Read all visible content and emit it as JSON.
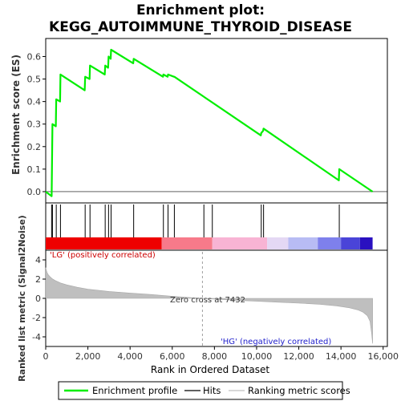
{
  "colors": {
    "enrichment_line": "#00ee00",
    "hit_line": "#000000",
    "ranked_fill": "#bfbfbf",
    "positive_label": "#cc0000",
    "negative_label": "#2222cc",
    "zero_cross_line": "#a0a0a0",
    "heatbar": [
      "#ee0000",
      "#f77a8a",
      "#f8b4d4",
      "#e4d8f4",
      "#b8bcf4",
      "#7e80ec",
      "#4a44d8",
      "#2a10c0"
    ]
  },
  "chart_data": [
    {
      "type": "line",
      "title": "Enrichment plot: KEGG_AUTOIMMUNE_THYROID_DISEASE",
      "title_lines": [
        "Enrichment plot:",
        "KEGG_AUTOIMMUNE_THYROID_DISEASE"
      ],
      "xlabel": "",
      "ylabel": "Enrichment score (ES)",
      "xlim": [
        0,
        16200
      ],
      "ylim": [
        -0.05,
        0.68
      ],
      "yticks": [
        0.0,
        0.1,
        0.2,
        0.3,
        0.4,
        0.5,
        0.6
      ],
      "ytick_labels": [
        "0.0",
        "0.1",
        "0.2",
        "0.3",
        "0.4",
        "0.5",
        "0.6"
      ],
      "grid": false,
      "series": [
        {
          "name": "Enrichment profile",
          "x": [
            0,
            280,
            300,
            320,
            480,
            500,
            680,
            700,
            1850,
            1870,
            2080,
            2100,
            2800,
            2820,
            2960,
            2980,
            3080,
            3100,
            4150,
            4170,
            5560,
            5580,
            5780,
            5800,
            6080,
            6100,
            10200,
            10220,
            10310,
            10330,
            13900,
            13920,
            15500
          ],
          "y": [
            0.0,
            -0.02,
            0.14,
            0.3,
            0.29,
            0.41,
            0.4,
            0.52,
            0.45,
            0.51,
            0.5,
            0.56,
            0.52,
            0.56,
            0.55,
            0.6,
            0.59,
            0.63,
            0.57,
            0.59,
            0.51,
            0.52,
            0.51,
            0.52,
            0.51,
            0.51,
            0.25,
            0.26,
            0.27,
            0.28,
            0.05,
            0.1,
            0.0
          ]
        }
      ]
    },
    {
      "type": "hits",
      "ylabel": "",
      "xlim": [
        0,
        16200
      ],
      "hit_positions": [
        280,
        320,
        500,
        700,
        1870,
        2100,
        2820,
        2980,
        3100,
        4170,
        5580,
        5800,
        6100,
        7500,
        7900,
        10220,
        10330,
        13920
      ],
      "heatbar_segments": [
        {
          "from": 0,
          "to": 5500
        },
        {
          "from": 5500,
          "to": 7900
        },
        {
          "from": 7900,
          "to": 10500
        },
        {
          "from": 10500,
          "to": 11500
        },
        {
          "from": 11500,
          "to": 12900
        },
        {
          "from": 12900,
          "to": 14000
        },
        {
          "from": 14000,
          "to": 14900
        },
        {
          "from": 14900,
          "to": 15500
        }
      ]
    },
    {
      "type": "area",
      "title": "",
      "xlabel": "Rank in Ordered Dataset",
      "ylabel": "Ranked list metric (Signal2Noise)",
      "xlim": [
        0,
        16200
      ],
      "ylim": [
        -5,
        5
      ],
      "xticks": [
        0,
        2000,
        4000,
        6000,
        8000,
        10000,
        12000,
        14000,
        16000
      ],
      "xtick_labels": [
        "0",
        "2,000",
        "4,000",
        "6,000",
        "8,000",
        "10,000",
        "12,000",
        "14,000",
        "16,000"
      ],
      "yticks": [
        4,
        2,
        0,
        -2,
        -4
      ],
      "ytick_labels": [
        "4",
        "2",
        "0",
        "-2",
        "-4"
      ],
      "series": [
        {
          "name": "Ranking metric scores",
          "x": [
            0,
            20,
            60,
            120,
            200,
            300,
            450,
            700,
            1000,
            1500,
            2000,
            3000,
            4000,
            5000,
            6000,
            7000,
            7432,
            8000,
            9000,
            10000,
            11000,
            12000,
            13000,
            13800,
            14400,
            14800,
            15050,
            15250,
            15380,
            15450,
            15500
          ],
          "y": [
            3.2,
            3.0,
            2.7,
            2.45,
            2.25,
            2.05,
            1.85,
            1.6,
            1.4,
            1.15,
            0.95,
            0.72,
            0.55,
            0.4,
            0.22,
            0.06,
            0.0,
            -0.08,
            -0.2,
            -0.3,
            -0.4,
            -0.5,
            -0.62,
            -0.78,
            -0.98,
            -1.2,
            -1.45,
            -1.8,
            -2.4,
            -3.6,
            -4.7
          ]
        }
      ],
      "annotations": {
        "positive": "'LG' (positively correlated)",
        "negative": "'HG' (negatively correlated)",
        "zero_cross": "Zero cross at 7432",
        "zero_cross_x": 7432
      }
    }
  ],
  "legend": {
    "items": [
      {
        "label": "Enrichment profile",
        "kind": "green-line"
      },
      {
        "label": "Hits",
        "kind": "black-line"
      },
      {
        "label": "Ranking metric scores",
        "kind": "gray-line"
      }
    ]
  }
}
